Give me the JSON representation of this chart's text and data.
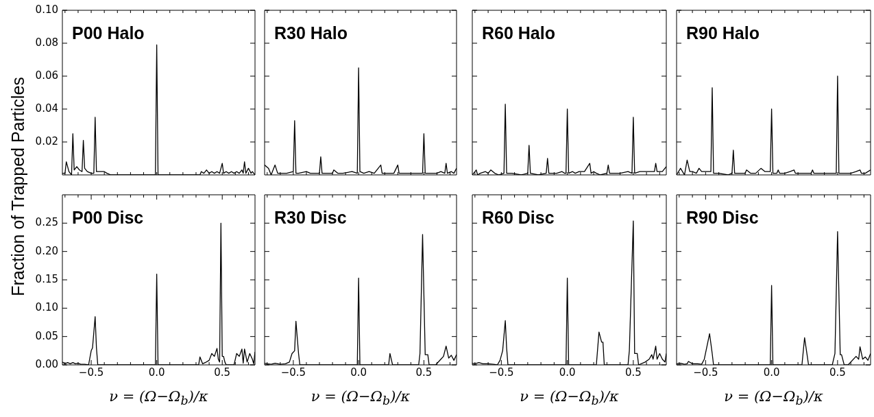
{
  "chart_data": [
    {
      "type": "line",
      "title": "P00 Halo",
      "ylabel": "Fraction of Trapped Particles",
      "color": "#000000",
      "tick_labels": "y",
      "xlim": [
        -0.72,
        0.75
      ],
      "ylim": [
        0,
        0.1
      ],
      "xticks": [
        {
          "value": -0.7,
          "label": null
        },
        {
          "value": -0.6,
          "label": null
        },
        {
          "value": -0.5,
          "label": null
        },
        {
          "value": -0.4,
          "label": null
        },
        {
          "value": -0.3,
          "label": null
        },
        {
          "value": -0.2,
          "label": null
        },
        {
          "value": -0.1,
          "label": null
        },
        {
          "value": 0,
          "label": null
        },
        {
          "value": 0.1,
          "label": null
        },
        {
          "value": 0.2,
          "label": null
        },
        {
          "value": 0.3,
          "label": null
        },
        {
          "value": 0.4,
          "label": null
        },
        {
          "value": 0.5,
          "label": null
        },
        {
          "value": 0.6,
          "label": null
        },
        {
          "value": 0.7,
          "label": null
        }
      ],
      "yticks": [
        {
          "value": 0.02,
          "label": "0.02"
        },
        {
          "value": 0.04,
          "label": "0.04"
        },
        {
          "value": 0.06,
          "label": "0.06"
        },
        {
          "value": 0.08,
          "label": "0.08"
        },
        {
          "value": 0.1,
          "label": "0.10"
        }
      ],
      "x": [
        -0.72,
        -0.7,
        -0.69,
        -0.67,
        -0.65,
        -0.64,
        -0.63,
        -0.61,
        -0.59,
        -0.57,
        -0.56,
        -0.55,
        -0.53,
        -0.5,
        -0.48,
        -0.47,
        -0.46,
        -0.44,
        -0.4,
        -0.38,
        -0.35,
        -0.01,
        0,
        0.01,
        0.33,
        0.34,
        0.36,
        0.38,
        0.4,
        0.42,
        0.44,
        0.46,
        0.48,
        0.5,
        0.51,
        0.53,
        0.55,
        0.57,
        0.59,
        0.61,
        0.63,
        0.65,
        0.66,
        0.67,
        0.68,
        0.7,
        0.72,
        0.73,
        0.75
      ],
      "values": [
        0.001,
        0.001,
        0.008,
        0.002,
        0,
        0.025,
        0.003,
        0.005,
        0.003,
        0.002,
        0.021,
        0.004,
        0.002,
        0.001,
        0.001,
        0.035,
        0.002,
        0.002,
        0.002,
        0.001,
        0,
        0,
        0.079,
        0,
        0,
        0.002,
        0.001,
        0.003,
        0.001,
        0.002,
        0.001,
        0.002,
        0.001,
        0.007,
        0.001,
        0.002,
        0.001,
        0.002,
        0.001,
        0.002,
        0.001,
        0.003,
        0.001,
        0.008,
        0.001,
        0.004,
        0.001,
        0.002,
        0
      ]
    },
    {
      "type": "line",
      "title": "R30 Halo",
      "color": "#000000",
      "tick_labels": false,
      "xlim": [
        -0.72,
        0.75
      ],
      "ylim": [
        0,
        0.1
      ],
      "xticks": [
        {
          "value": -0.7,
          "label": null
        },
        {
          "value": -0.6,
          "label": null
        },
        {
          "value": -0.5,
          "label": null
        },
        {
          "value": -0.4,
          "label": null
        },
        {
          "value": -0.3,
          "label": null
        },
        {
          "value": -0.2,
          "label": null
        },
        {
          "value": -0.1,
          "label": null
        },
        {
          "value": 0,
          "label": null
        },
        {
          "value": 0.1,
          "label": null
        },
        {
          "value": 0.2,
          "label": null
        },
        {
          "value": 0.3,
          "label": null
        },
        {
          "value": 0.4,
          "label": null
        },
        {
          "value": 0.5,
          "label": null
        },
        {
          "value": 0.6,
          "label": null
        },
        {
          "value": 0.7,
          "label": null
        }
      ],
      "yticks": [
        {
          "value": 0.02,
          "label": null
        },
        {
          "value": 0.04,
          "label": null
        },
        {
          "value": 0.06,
          "label": null
        },
        {
          "value": 0.08,
          "label": null
        },
        {
          "value": 0.1,
          "label": null
        }
      ],
      "x": [
        -0.72,
        -0.69,
        -0.67,
        -0.64,
        -0.62,
        -0.6,
        -0.55,
        -0.5,
        -0.49,
        -0.48,
        -0.46,
        -0.4,
        -0.37,
        -0.3,
        -0.29,
        -0.28,
        -0.24,
        -0.2,
        -0.19,
        -0.16,
        -0.12,
        -0.05,
        -0.01,
        0,
        0.01,
        0.04,
        0.08,
        0.12,
        0.17,
        0.18,
        0.22,
        0.27,
        0.3,
        0.31,
        0.32,
        0.4,
        0.47,
        0.49,
        0.5,
        0.51,
        0.55,
        0.6,
        0.63,
        0.66,
        0.67,
        0.68,
        0.71,
        0.73,
        0.75
      ],
      "values": [
        0.006,
        0.004,
        0,
        0.006,
        0.001,
        0.001,
        0.001,
        0.002,
        0.033,
        0.001,
        0.001,
        0.002,
        0.001,
        0.001,
        0.011,
        0.001,
        0.001,
        0.001,
        0.003,
        0.001,
        0.001,
        0.002,
        0.001,
        0.065,
        0.002,
        0.001,
        0.002,
        0.001,
        0.006,
        0.001,
        0.001,
        0.001,
        0.006,
        0.001,
        0.001,
        0.001,
        0.001,
        0.001,
        0.025,
        0.001,
        0.001,
        0.001,
        0.002,
        0.001,
        0.007,
        0.001,
        0.002,
        0.001,
        0.004
      ]
    },
    {
      "type": "line",
      "title": "R60 Halo",
      "color": "#000000",
      "tick_labels": false,
      "xlim": [
        -0.72,
        0.75
      ],
      "ylim": [
        0,
        0.1
      ],
      "xticks": [
        {
          "value": -0.7,
          "label": null
        },
        {
          "value": -0.6,
          "label": null
        },
        {
          "value": -0.5,
          "label": null
        },
        {
          "value": -0.4,
          "label": null
        },
        {
          "value": -0.3,
          "label": null
        },
        {
          "value": -0.2,
          "label": null
        },
        {
          "value": -0.1,
          "label": null
        },
        {
          "value": 0,
          "label": null
        },
        {
          "value": 0.1,
          "label": null
        },
        {
          "value": 0.2,
          "label": null
        },
        {
          "value": 0.3,
          "label": null
        },
        {
          "value": 0.4,
          "label": null
        },
        {
          "value": 0.5,
          "label": null
        },
        {
          "value": 0.6,
          "label": null
        },
        {
          "value": 0.7,
          "label": null
        }
      ],
      "yticks": [
        {
          "value": 0.02,
          "label": null
        },
        {
          "value": 0.04,
          "label": null
        },
        {
          "value": 0.06,
          "label": null
        },
        {
          "value": 0.08,
          "label": null
        },
        {
          "value": 0.1,
          "label": null
        }
      ],
      "x": [
        -0.72,
        -0.69,
        -0.68,
        -0.66,
        -0.62,
        -0.6,
        -0.58,
        -0.55,
        -0.52,
        -0.48,
        -0.47,
        -0.46,
        -0.42,
        -0.35,
        -0.3,
        -0.29,
        -0.28,
        -0.22,
        -0.16,
        -0.15,
        -0.14,
        -0.08,
        -0.04,
        -0.02,
        -0.01,
        0,
        0.01,
        0.04,
        0.06,
        0.09,
        0.13,
        0.17,
        0.18,
        0.2,
        0.22,
        0.25,
        0.3,
        0.31,
        0.32,
        0.4,
        0.46,
        0.49,
        0.5,
        0.51,
        0.55,
        0.6,
        0.66,
        0.67,
        0.68,
        0.72,
        0.75
      ],
      "values": [
        0,
        0.003,
        0,
        0.001,
        0.002,
        0.001,
        0.003,
        0.001,
        0,
        0.001,
        0.043,
        0.001,
        0.001,
        0,
        0.001,
        0.018,
        0.001,
        0,
        0.001,
        0.01,
        0.001,
        0.001,
        0.002,
        0.001,
        0.001,
        0.04,
        0.001,
        0.002,
        0.001,
        0.002,
        0.002,
        0.007,
        0.001,
        0.002,
        0.001,
        0,
        0.001,
        0.006,
        0.001,
        0.001,
        0.002,
        0.001,
        0.035,
        0.001,
        0.002,
        0.002,
        0.002,
        0.007,
        0.002,
        0.002,
        0.005
      ]
    },
    {
      "type": "line",
      "title": "R90 Halo",
      "color": "#000000",
      "tick_labels": false,
      "xlim": [
        -0.72,
        0.75
      ],
      "ylim": [
        0,
        0.1
      ],
      "xticks": [
        {
          "value": -0.7,
          "label": null
        },
        {
          "value": -0.6,
          "label": null
        },
        {
          "value": -0.5,
          "label": null
        },
        {
          "value": -0.4,
          "label": null
        },
        {
          "value": -0.3,
          "label": null
        },
        {
          "value": -0.2,
          "label": null
        },
        {
          "value": -0.1,
          "label": null
        },
        {
          "value": 0,
          "label": null
        },
        {
          "value": 0.1,
          "label": null
        },
        {
          "value": 0.2,
          "label": null
        },
        {
          "value": 0.3,
          "label": null
        },
        {
          "value": 0.4,
          "label": null
        },
        {
          "value": 0.5,
          "label": null
        },
        {
          "value": 0.6,
          "label": null
        },
        {
          "value": 0.7,
          "label": null
        }
      ],
      "yticks": [
        {
          "value": 0.02,
          "label": null
        },
        {
          "value": 0.04,
          "label": null
        },
        {
          "value": 0.06,
          "label": null
        },
        {
          "value": 0.08,
          "label": null
        },
        {
          "value": 0.1,
          "label": null
        }
      ],
      "x": [
        -0.72,
        -0.69,
        -0.66,
        -0.64,
        -0.62,
        -0.6,
        -0.57,
        -0.55,
        -0.53,
        -0.49,
        -0.46,
        -0.45,
        -0.44,
        -0.4,
        -0.33,
        -0.3,
        -0.29,
        -0.28,
        -0.24,
        -0.2,
        -0.19,
        -0.16,
        -0.12,
        -0.08,
        -0.05,
        -0.02,
        -0.01,
        0,
        0.01,
        0.04,
        0.05,
        0.06,
        0.1,
        0.14,
        0.17,
        0.18,
        0.25,
        0.3,
        0.31,
        0.32,
        0.4,
        0.48,
        0.49,
        0.5,
        0.51,
        0.55,
        0.6,
        0.64,
        0.67,
        0.68,
        0.71,
        0.75
      ],
      "values": [
        0,
        0.004,
        0,
        0.009,
        0.002,
        0.002,
        0.001,
        0.004,
        0.002,
        0.002,
        0.002,
        0.053,
        0.001,
        0.001,
        0,
        0.001,
        0.015,
        0.001,
        0.001,
        0.001,
        0.003,
        0.001,
        0.001,
        0.004,
        0.002,
        0.002,
        0.002,
        0.04,
        0.001,
        0.001,
        0.003,
        0.001,
        0.001,
        0.002,
        0.003,
        0.001,
        0.001,
        0.001,
        0.003,
        0.001,
        0.001,
        0.001,
        0.001,
        0.06,
        0.001,
        0.001,
        0.001,
        0.002,
        0.003,
        0.001,
        0.001,
        0.003
      ]
    },
    {
      "type": "line",
      "title": "P00 Disc",
      "xlabel": "ν = (Ω−Ω$_{b}$)/κ",
      "color": "#000000",
      "xlim": [
        -0.72,
        0.75
      ],
      "ylim": [
        0,
        0.3
      ],
      "xticks": [
        {
          "value": -0.7,
          "label": null
        },
        {
          "value": -0.6,
          "label": null
        },
        {
          "value": -0.5,
          "label": "−0.5"
        },
        {
          "value": -0.4,
          "label": null
        },
        {
          "value": -0.3,
          "label": null
        },
        {
          "value": -0.2,
          "label": null
        },
        {
          "value": -0.1,
          "label": null
        },
        {
          "value": 0,
          "label": "0.0"
        },
        {
          "value": 0.1,
          "label": null
        },
        {
          "value": 0.2,
          "label": null
        },
        {
          "value": 0.3,
          "label": null
        },
        {
          "value": 0.4,
          "label": null
        },
        {
          "value": 0.5,
          "label": "0.5"
        },
        {
          "value": 0.6,
          "label": null
        },
        {
          "value": 0.7,
          "label": null
        }
      ],
      "yticks": [
        {
          "value": 0,
          "label": "0.00"
        },
        {
          "value": 0.05,
          "label": "0.05"
        },
        {
          "value": 0.1,
          "label": "0.10"
        },
        {
          "value": 0.15,
          "label": "0.15"
        },
        {
          "value": 0.2,
          "label": "0.20"
        },
        {
          "value": 0.25,
          "label": "0.25"
        }
      ],
      "x": [
        -0.72,
        -0.7,
        -0.68,
        -0.66,
        -0.64,
        -0.62,
        -0.6,
        -0.58,
        -0.55,
        -0.52,
        -0.5,
        -0.49,
        -0.47,
        -0.46,
        -0.45,
        -0.01,
        0,
        0.01,
        0.32,
        0.33,
        0.35,
        0.37,
        0.4,
        0.42,
        0.44,
        0.46,
        0.47,
        0.48,
        0.49,
        0.5,
        0.51,
        0.52,
        0.53,
        0.59,
        0.61,
        0.63,
        0.65,
        0.66,
        0.67,
        0.69,
        0.71,
        0.73,
        0.74,
        0.75
      ],
      "values": [
        0.005,
        0.002,
        0.004,
        0.002,
        0.004,
        0.002,
        0.003,
        0.001,
        0.001,
        0,
        0.025,
        0.03,
        0.085,
        0.03,
        0,
        0,
        0.16,
        0,
        0,
        0.014,
        0.002,
        0.004,
        0.008,
        0.02,
        0.015,
        0.029,
        0.01,
        0.005,
        0.25,
        0.015,
        0.015,
        0.005,
        0,
        0,
        0.02,
        0.015,
        0.028,
        0.003,
        0.028,
        0.005,
        0.02,
        0.01,
        0.002,
        0.023
      ]
    },
    {
      "type": "line",
      "title": "R30 Disc",
      "xlabel": "ν = (Ω−Ω$_{b}$)/κ",
      "color": "#000000",
      "tick_labels": "x",
      "xlim": [
        -0.72,
        0.75
      ],
      "ylim": [
        0,
        0.3
      ],
      "xticks": [
        {
          "value": -0.7,
          "label": null
        },
        {
          "value": -0.6,
          "label": null
        },
        {
          "value": -0.5,
          "label": "−0.5"
        },
        {
          "value": -0.4,
          "label": null
        },
        {
          "value": -0.3,
          "label": null
        },
        {
          "value": -0.2,
          "label": null
        },
        {
          "value": -0.1,
          "label": null
        },
        {
          "value": 0,
          "label": "0.0"
        },
        {
          "value": 0.1,
          "label": null
        },
        {
          "value": 0.2,
          "label": null
        },
        {
          "value": 0.3,
          "label": null
        },
        {
          "value": 0.4,
          "label": null
        },
        {
          "value": 0.5,
          "label": "0.5"
        },
        {
          "value": 0.6,
          "label": null
        },
        {
          "value": 0.7,
          "label": null
        }
      ],
      "yticks": [
        {
          "value": 0,
          "label": null
        },
        {
          "value": 0.05,
          "label": null
        },
        {
          "value": 0.1,
          "label": null
        },
        {
          "value": 0.15,
          "label": null
        },
        {
          "value": 0.2,
          "label": null
        },
        {
          "value": 0.25,
          "label": null
        }
      ],
      "x": [
        -0.72,
        -0.7,
        -0.67,
        -0.64,
        -0.6,
        -0.56,
        -0.53,
        -0.51,
        -0.49,
        -0.48,
        -0.46,
        -0.45,
        -0.01,
        0,
        0.01,
        0.23,
        0.24,
        0.26,
        0.46,
        0.47,
        0.49,
        0.51,
        0.53,
        0.54,
        0.59,
        0.63,
        0.65,
        0.67,
        0.69,
        0.71,
        0.73,
        0.75
      ],
      "values": [
        0.003,
        0.002,
        0.001,
        0.003,
        0.001,
        0.002,
        0.005,
        0.02,
        0.025,
        0.077,
        0.02,
        0,
        0,
        0.153,
        0,
        0,
        0.02,
        0,
        0,
        0.02,
        0.23,
        0.018,
        0.018,
        0,
        0,
        0.01,
        0.015,
        0.033,
        0.012,
        0.017,
        0.008,
        0.018
      ]
    },
    {
      "type": "line",
      "title": "R60 Disc",
      "xlabel": "ν = (Ω−Ω$_{b}$)/κ",
      "color": "#000000",
      "tick_labels": "x",
      "xlim": [
        -0.72,
        0.75
      ],
      "ylim": [
        0,
        0.3
      ],
      "xticks": [
        {
          "value": -0.7,
          "label": null
        },
        {
          "value": -0.6,
          "label": null
        },
        {
          "value": -0.5,
          "label": "−0.5"
        },
        {
          "value": -0.4,
          "label": null
        },
        {
          "value": -0.3,
          "label": null
        },
        {
          "value": -0.2,
          "label": null
        },
        {
          "value": -0.1,
          "label": null
        },
        {
          "value": 0,
          "label": "0.0"
        },
        {
          "value": 0.1,
          "label": null
        },
        {
          "value": 0.2,
          "label": null
        },
        {
          "value": 0.3,
          "label": null
        },
        {
          "value": 0.4,
          "label": null
        },
        {
          "value": 0.5,
          "label": "0.5"
        },
        {
          "value": 0.6,
          "label": null
        },
        {
          "value": 0.7,
          "label": null
        }
      ],
      "yticks": [
        {
          "value": 0,
          "label": null
        },
        {
          "value": 0.05,
          "label": null
        },
        {
          "value": 0.1,
          "label": null
        },
        {
          "value": 0.15,
          "label": null
        },
        {
          "value": 0.2,
          "label": null
        },
        {
          "value": 0.25,
          "label": null
        }
      ],
      "x": [
        -0.72,
        -0.7,
        -0.67,
        -0.64,
        -0.6,
        -0.56,
        -0.53,
        -0.51,
        -0.49,
        -0.47,
        -0.46,
        -0.45,
        -0.01,
        0,
        0.01,
        0.22,
        0.24,
        0.26,
        0.27,
        0.28,
        0.46,
        0.47,
        0.5,
        0.51,
        0.53,
        0.54,
        0.59,
        0.62,
        0.64,
        0.65,
        0.67,
        0.68,
        0.7,
        0.72,
        0.74,
        0.75
      ],
      "values": [
        0.003,
        0.002,
        0.004,
        0.002,
        0.002,
        0.001,
        0,
        0.008,
        0.025,
        0.078,
        0.03,
        0,
        0,
        0.153,
        0,
        0,
        0.058,
        0.04,
        0.04,
        0,
        0,
        0.025,
        0.254,
        0.02,
        0.02,
        0,
        0.005,
        0.01,
        0.018,
        0.01,
        0.033,
        0.01,
        0.02,
        0.01,
        0.005,
        0.02
      ]
    },
    {
      "type": "line",
      "title": "R90 Disc",
      "xlabel": "ν = (Ω−Ω$_{b}$)/κ",
      "color": "#000000",
      "tick_labels": "x",
      "xlim": [
        -0.72,
        0.75
      ],
      "ylim": [
        0,
        0.3
      ],
      "xticks": [
        {
          "value": -0.7,
          "label": null
        },
        {
          "value": -0.6,
          "label": null
        },
        {
          "value": -0.5,
          "label": "−0.5"
        },
        {
          "value": -0.4,
          "label": null
        },
        {
          "value": -0.3,
          "label": null
        },
        {
          "value": -0.2,
          "label": null
        },
        {
          "value": -0.1,
          "label": null
        },
        {
          "value": 0,
          "label": "0.0"
        },
        {
          "value": 0.1,
          "label": null
        },
        {
          "value": 0.2,
          "label": null
        },
        {
          "value": 0.3,
          "label": null
        },
        {
          "value": 0.4,
          "label": null
        },
        {
          "value": 0.5,
          "label": "0.5"
        },
        {
          "value": 0.6,
          "label": null
        },
        {
          "value": 0.7,
          "label": null
        }
      ],
      "yticks": [
        {
          "value": 0,
          "label": null
        },
        {
          "value": 0.05,
          "label": null
        },
        {
          "value": 0.1,
          "label": null
        },
        {
          "value": 0.15,
          "label": null
        },
        {
          "value": 0.2,
          "label": null
        },
        {
          "value": 0.25,
          "label": null
        }
      ],
      "x": [
        -0.72,
        -0.69,
        -0.66,
        -0.64,
        -0.63,
        -0.6,
        -0.56,
        -0.53,
        -0.51,
        -0.47,
        -0.45,
        -0.44,
        -0.01,
        0,
        0.01,
        0.23,
        0.25,
        0.26,
        0.28,
        0.46,
        0.48,
        0.5,
        0.52,
        0.53,
        0.55,
        0.58,
        0.64,
        0.66,
        0.67,
        0.69,
        0.71,
        0.73,
        0.75
      ],
      "values": [
        0.002,
        0.003,
        0.001,
        0.002,
        0.006,
        0.002,
        0.002,
        0.001,
        0.01,
        0.055,
        0.02,
        0,
        0,
        0.14,
        0,
        0,
        0.048,
        0.032,
        0,
        0,
        0.02,
        0.235,
        0.018,
        0.018,
        0,
        0,
        0.015,
        0.01,
        0.032,
        0.01,
        0.014,
        0.008,
        0.02
      ]
    }
  ]
}
